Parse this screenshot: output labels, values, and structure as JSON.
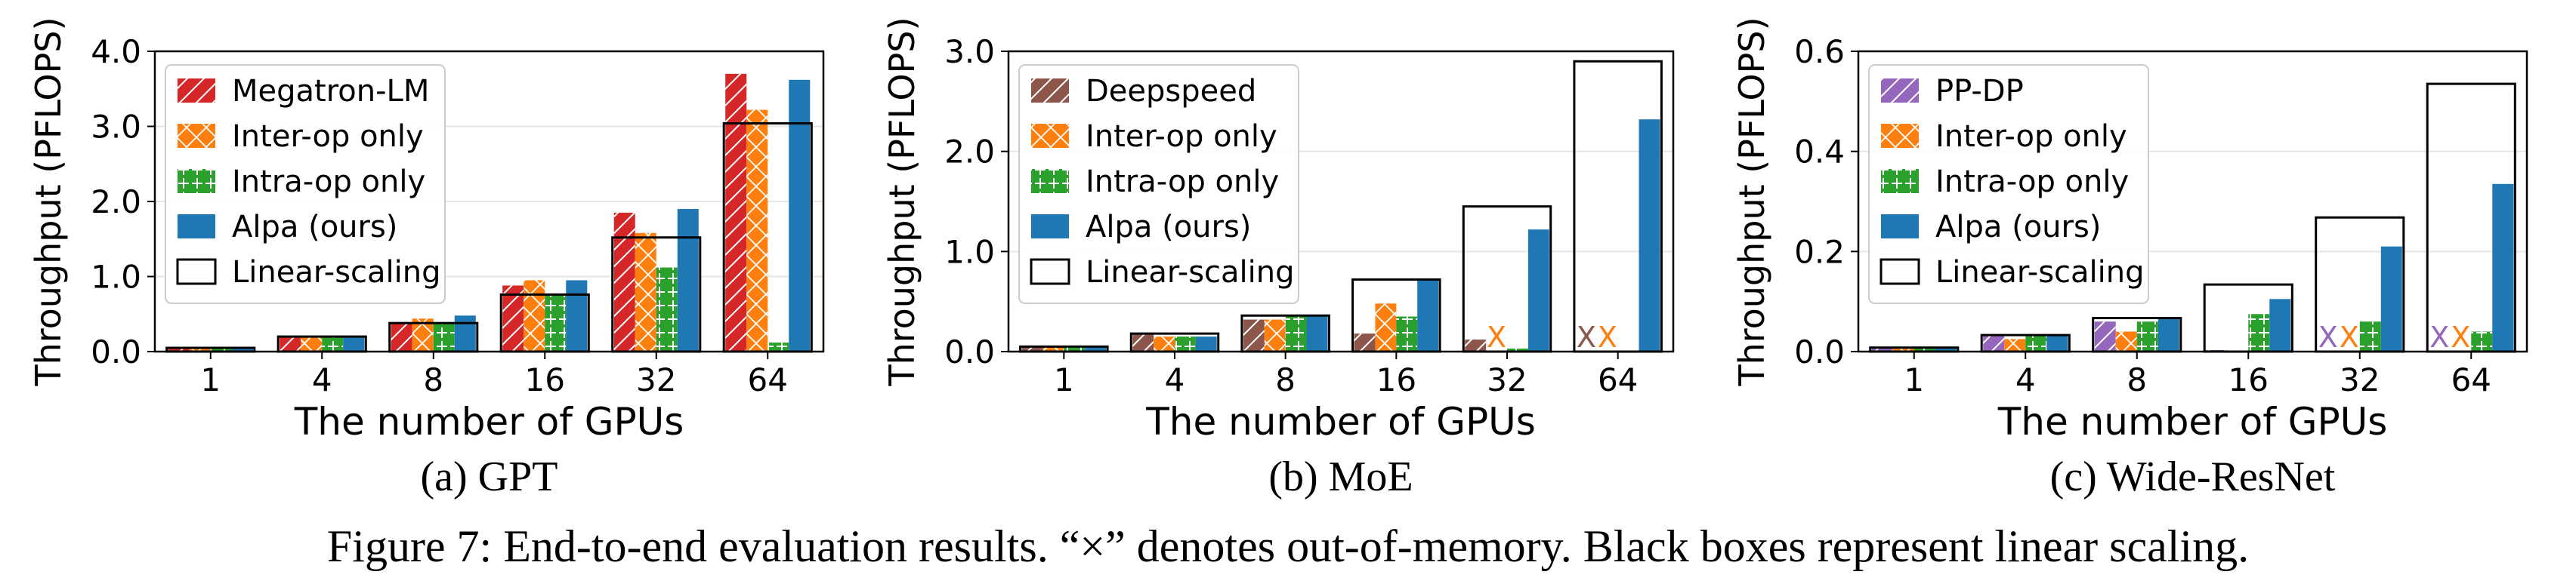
{
  "figure": {
    "caption": "Figure 7: End-to-end evaluation results. “×” denotes out-of-memory. Black boxes represent linear scaling.",
    "oom_marker": "X",
    "colors": {
      "series1_gpt": "#d62728",
      "series1_moe": "#8c564b",
      "series1_wrn": "#9467bd",
      "inter_op": "#ff7f0e",
      "intra_op": "#2ca02c",
      "alpa": "#1f77b4",
      "linear": "#000000"
    }
  },
  "chart_data": [
    {
      "type": "bar",
      "subcaption": "(a) GPT",
      "xlabel": "The number of GPUs",
      "ylabel": "Throughput (PFLOPS)",
      "ylim": [
        0,
        4.0
      ],
      "yticks": [
        "0.0",
        "1.0",
        "2.0",
        "3.0",
        "4.0"
      ],
      "categories": [
        "1",
        "4",
        "8",
        "16",
        "32",
        "64"
      ],
      "legend": [
        "Megatron-LM",
        "Inter-op only",
        "Intra-op only",
        "Alpa (ours)",
        "Linear-scaling"
      ],
      "legend_position": "upper-left",
      "series": [
        {
          "name": "Megatron-LM",
          "values": [
            0.05,
            0.2,
            0.38,
            0.88,
            1.85,
            3.7
          ],
          "oom": [
            false,
            false,
            false,
            false,
            false,
            false
          ]
        },
        {
          "name": "Inter-op only",
          "values": [
            0.05,
            0.2,
            0.44,
            0.95,
            1.58,
            3.22
          ],
          "oom": [
            false,
            false,
            false,
            false,
            false,
            false
          ]
        },
        {
          "name": "Intra-op only",
          "values": [
            0.05,
            0.2,
            0.38,
            0.76,
            1.12,
            0.12
          ],
          "oom": [
            false,
            false,
            false,
            false,
            false,
            false
          ]
        },
        {
          "name": "Alpa (ours)",
          "values": [
            0.05,
            0.2,
            0.48,
            0.95,
            1.9,
            3.62
          ],
          "oom": [
            false,
            false,
            false,
            false,
            false,
            false
          ]
        }
      ],
      "linear_scaling": [
        0.05,
        0.2,
        0.38,
        0.76,
        1.52,
        3.04
      ]
    },
    {
      "type": "bar",
      "subcaption": "(b) MoE",
      "xlabel": "The number of GPUs",
      "ylabel": "Throughput (PFLOPS)",
      "ylim": [
        0,
        3.0
      ],
      "yticks": [
        "0.0",
        "1.0",
        "2.0",
        "3.0"
      ],
      "categories": [
        "1",
        "4",
        "8",
        "16",
        "32",
        "64"
      ],
      "legend": [
        "Deepspeed",
        "Inter-op only",
        "Intra-op only",
        "Alpa (ours)",
        "Linear-scaling"
      ],
      "legend_position": "upper-left",
      "series": [
        {
          "name": "Deepspeed",
          "values": [
            0.05,
            0.17,
            0.32,
            0.18,
            0.12,
            0
          ],
          "oom": [
            false,
            false,
            false,
            false,
            false,
            true
          ]
        },
        {
          "name": "Inter-op only",
          "values": [
            0.05,
            0.15,
            0.32,
            0.48,
            0,
            0
          ],
          "oom": [
            false,
            false,
            false,
            false,
            true,
            true
          ]
        },
        {
          "name": "Intra-op only",
          "values": [
            0.05,
            0.15,
            0.35,
            0.35,
            0.03,
            0
          ],
          "oom": [
            false,
            false,
            false,
            false,
            false,
            false
          ]
        },
        {
          "name": "Alpa (ours)",
          "values": [
            0.05,
            0.15,
            0.35,
            0.72,
            1.22,
            2.32
          ],
          "oom": [
            false,
            false,
            false,
            false,
            false,
            false
          ]
        }
      ],
      "linear_scaling": [
        0.05,
        0.18,
        0.36,
        0.72,
        1.45,
        2.9
      ]
    },
    {
      "type": "bar",
      "subcaption": "(c) Wide-ResNet",
      "xlabel": "The number of GPUs",
      "ylabel": "Throughput (PFLOPS)",
      "ylim": [
        0,
        0.6
      ],
      "yticks": [
        "0.0",
        "0.2",
        "0.4",
        "0.6"
      ],
      "categories": [
        "1",
        "4",
        "8",
        "16",
        "32",
        "64"
      ],
      "legend": [
        "PP-DP",
        "Inter-op only",
        "Intra-op only",
        "Alpa (ours)",
        "Linear-scaling"
      ],
      "legend_position": "upper-left",
      "series": [
        {
          "name": "PP-DP",
          "values": [
            0.008,
            0.035,
            0.06,
            0.003,
            0,
            0
          ],
          "oom": [
            false,
            false,
            false,
            false,
            true,
            true
          ]
        },
        {
          "name": "Inter-op only",
          "values": [
            0.008,
            0.025,
            0.04,
            0.002,
            0,
            0
          ],
          "oom": [
            false,
            false,
            false,
            false,
            true,
            true
          ]
        },
        {
          "name": "Intra-op only",
          "values": [
            0.008,
            0.033,
            0.06,
            0.075,
            0.06,
            0.04
          ],
          "oom": [
            false,
            false,
            false,
            false,
            false,
            false
          ]
        },
        {
          "name": "Alpa (ours)",
          "values": [
            0.008,
            0.033,
            0.065,
            0.105,
            0.21,
            0.335
          ],
          "oom": [
            false,
            false,
            false,
            false,
            false,
            false
          ]
        }
      ],
      "linear_scaling": [
        0.008,
        0.033,
        0.067,
        0.134,
        0.268,
        0.535
      ]
    }
  ]
}
